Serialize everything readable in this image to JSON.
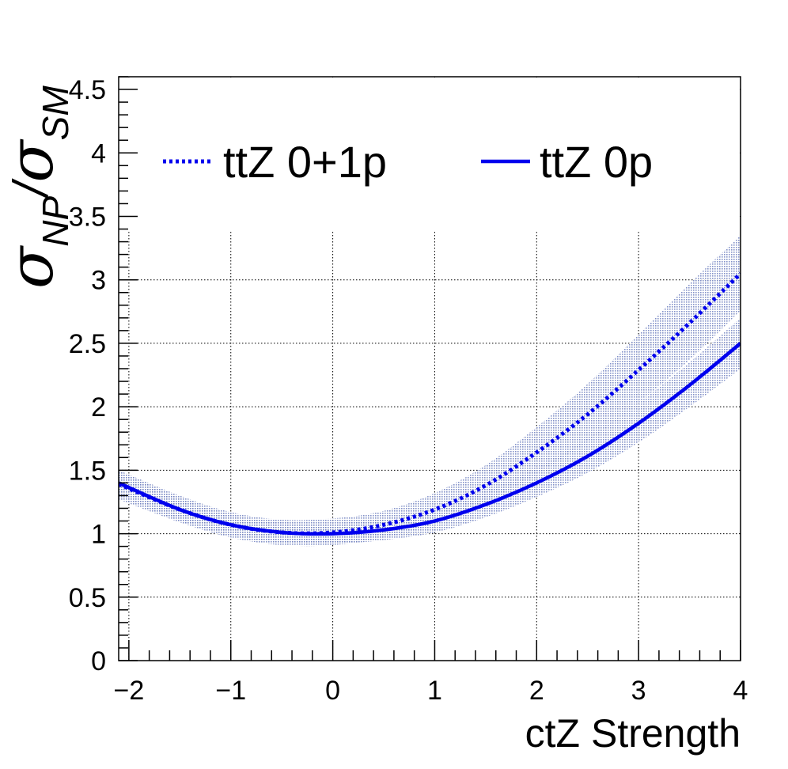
{
  "chart_data": {
    "type": "line",
    "xlabel": "ctZ Strength",
    "ylabel": {
      "symbol": "σ",
      "numerator_sub": "NP",
      "separator": "/",
      "denominator_sub": "SM"
    },
    "xlim": [
      -2.1,
      4.0
    ],
    "ylim": [
      0,
      4.6
    ],
    "x_ticks": [
      -2,
      -1,
      0,
      1,
      2,
      3,
      4
    ],
    "x_tick_labels": [
      "−2",
      "−1",
      "0",
      "1",
      "2",
      "3",
      "4"
    ],
    "y_ticks": [
      0,
      0.5,
      1,
      1.5,
      2,
      2.5,
      3,
      3.5,
      4,
      4.5
    ],
    "y_tick_labels": [
      "0",
      "0.5",
      "1",
      "1.5",
      "2",
      "2.5",
      "3",
      "3.5",
      "4",
      "4.5"
    ],
    "grid": true,
    "legend_position": "top",
    "x": [
      -2.1,
      -1.5,
      -1.0,
      -0.5,
      0.0,
      0.5,
      1.0,
      1.5,
      2.0,
      2.5,
      3.0,
      3.5,
      4.0
    ],
    "series": [
      {
        "name": "ttZ 0+1p",
        "style": "dotted",
        "color": "#0000ee",
        "values": [
          1.39,
          1.19,
          1.07,
          1.01,
          1.01,
          1.07,
          1.19,
          1.38,
          1.64,
          1.94,
          2.29,
          2.66,
          3.05
        ],
        "band_upper": [
          1.5,
          1.3,
          1.17,
          1.11,
          1.12,
          1.18,
          1.32,
          1.54,
          1.84,
          2.18,
          2.57,
          2.97,
          3.35
        ],
        "band_lower": [
          1.27,
          1.09,
          0.97,
          0.91,
          0.91,
          0.97,
          1.08,
          1.25,
          1.47,
          1.73,
          2.03,
          2.37,
          2.76
        ]
      },
      {
        "name": "ttZ 0p",
        "style": "solid",
        "color": "#0000ee",
        "values": [
          1.4,
          1.19,
          1.07,
          1.01,
          1.0,
          1.03,
          1.1,
          1.23,
          1.4,
          1.61,
          1.87,
          2.17,
          2.5
        ],
        "band_upper": [
          1.5,
          1.28,
          1.15,
          1.09,
          1.08,
          1.12,
          1.2,
          1.34,
          1.52,
          1.75,
          2.03,
          2.35,
          2.7
        ],
        "band_lower": [
          1.3,
          1.1,
          0.99,
          0.93,
          0.92,
          0.95,
          1.01,
          1.13,
          1.29,
          1.48,
          1.72,
          2.0,
          2.3
        ]
      }
    ]
  }
}
